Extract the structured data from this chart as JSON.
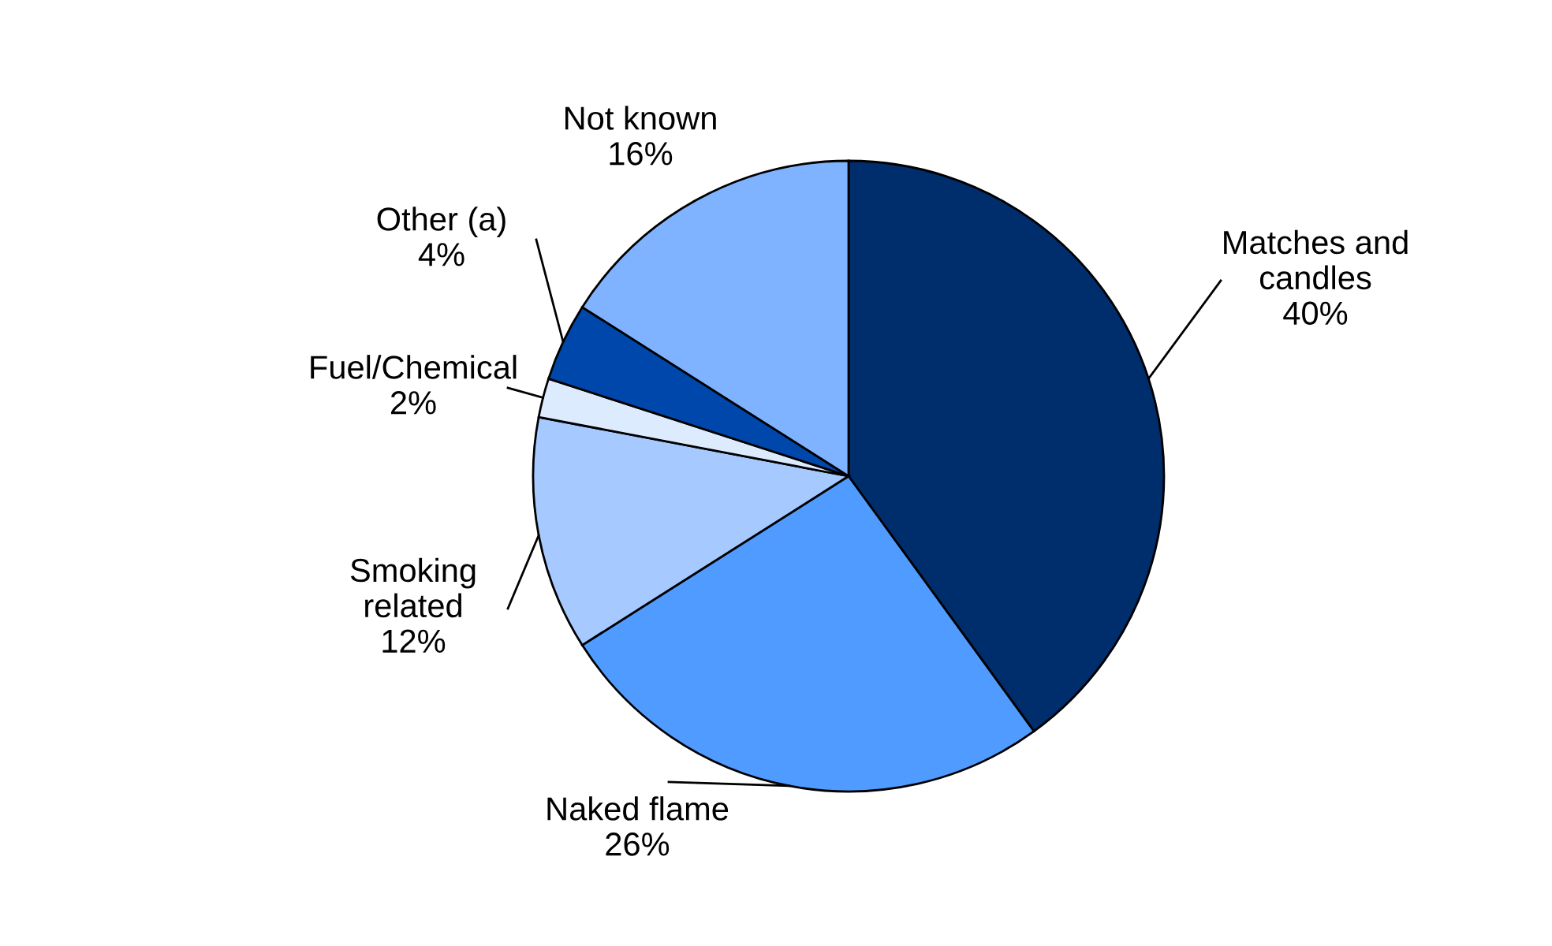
{
  "chart_data": {
    "type": "pie",
    "categories": [
      "Matches and\ncandles",
      "Naked flame",
      "Smoking\nrelated",
      "Fuel/Chemical",
      "Other (a)",
      "Not known"
    ],
    "values": [
      40,
      26,
      12,
      2,
      4,
      16
    ],
    "colors": [
      "#002d6b",
      "#4f9bff",
      "#a6caff",
      "#ddebff",
      "#0047ab",
      "#80b3ff"
    ],
    "value_labels": [
      "40%",
      "26%",
      "12%",
      "2%",
      "4%",
      "16%"
    ],
    "legend": false
  }
}
